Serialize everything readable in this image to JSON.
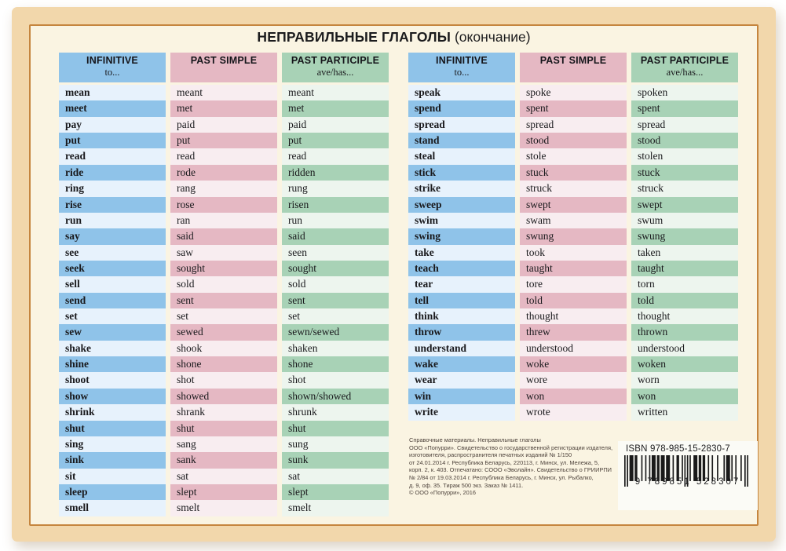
{
  "title": {
    "main": "НЕПРАВИЛЬНЫЕ ГЛАГОЛЫ",
    "suffix": "(окончание)"
  },
  "columns": {
    "infinitive": {
      "label": "INFINITIVE",
      "sub": "to..."
    },
    "past_simple": {
      "label": "PAST SIMPLE",
      "sub": ""
    },
    "past_participle": {
      "label": "PAST PARTICIPLE",
      "sub": "ave/has..."
    }
  },
  "left_table": {
    "rows": [
      [
        "mean",
        "meant",
        "meant"
      ],
      [
        "meet",
        "met",
        "met"
      ],
      [
        "pay",
        "paid",
        "paid"
      ],
      [
        "put",
        "put",
        "put"
      ],
      [
        "read",
        "read",
        "read"
      ],
      [
        "ride",
        "rode",
        "ridden"
      ],
      [
        "ring",
        "rang",
        "rung"
      ],
      [
        "rise",
        "rose",
        "risen"
      ],
      [
        "run",
        "ran",
        "run"
      ],
      [
        "say",
        "said",
        "said"
      ],
      [
        "see",
        "saw",
        "seen"
      ],
      [
        "seek",
        "sought",
        "sought"
      ],
      [
        "sell",
        "sold",
        "sold"
      ],
      [
        "send",
        "sent",
        "sent"
      ],
      [
        "set",
        "set",
        "set"
      ],
      [
        "sew",
        "sewed",
        "sewn/sewed"
      ],
      [
        "shake",
        "shook",
        "shaken"
      ],
      [
        "shine",
        "shone",
        "shone"
      ],
      [
        "shoot",
        "shot",
        "shot"
      ],
      [
        "show",
        "showed",
        "shown/showed"
      ],
      [
        "shrink",
        "shrank",
        "shrunk"
      ],
      [
        "shut",
        "shut",
        "shut"
      ],
      [
        "sing",
        "sang",
        "sung"
      ],
      [
        "sink",
        "sank",
        "sunk"
      ],
      [
        "sit",
        "sat",
        "sat"
      ],
      [
        "sleep",
        "slept",
        "slept"
      ],
      [
        "smell",
        "smelt",
        "smelt"
      ]
    ]
  },
  "right_table": {
    "rows": [
      [
        "speak",
        "spoke",
        "spoken"
      ],
      [
        "spend",
        "spent",
        "spent"
      ],
      [
        "spread",
        "spread",
        "spread"
      ],
      [
        "stand",
        "stood",
        "stood"
      ],
      [
        "steal",
        "stole",
        "stolen"
      ],
      [
        "stick",
        "stuck",
        "stuck"
      ],
      [
        "strike",
        "struck",
        "struck"
      ],
      [
        "sweep",
        "swept",
        "swept"
      ],
      [
        "swim",
        "swam",
        "swum"
      ],
      [
        "swing",
        "swung",
        "swung"
      ],
      [
        "take",
        "took",
        "taken"
      ],
      [
        "teach",
        "taught",
        "taught"
      ],
      [
        "tear",
        "tore",
        "torn"
      ],
      [
        "tell",
        "told",
        "told"
      ],
      [
        "think",
        "thought",
        "thought"
      ],
      [
        "throw",
        "threw",
        "thrown"
      ],
      [
        "understand",
        "understood",
        "understood"
      ],
      [
        "wake",
        "woke",
        "woken"
      ],
      [
        "wear",
        "wore",
        "worn"
      ],
      [
        "win",
        "won",
        "won"
      ],
      [
        "write",
        "wrote",
        "written"
      ]
    ]
  },
  "publisher": {
    "lines": [
      "Справочные материалы. Неправильные глаголы",
      "ООО «Попурри». Свидетельство о государственной регистрации издателя,",
      "изготовителя, распространителя печатных изданий № 1/150",
      "от 24.01.2014 г. Республика Беларусь, 220113, г. Минск, ул. Мележа, 5,",
      "корп. 2, к. 403. Отпечатано: СООО «Эволайн». Свидетельство о ГРИИРПИ",
      "№ 2/84 от 19.03.2014 г. Республика Беларусь, г. Минск, ул. Рыбалко,",
      "д. 9, оф. 35. Тираж 500 экз. Заказ № 1411.",
      "© ООО «Попурри», 2016"
    ]
  },
  "barcode": {
    "isbn_label": "ISBN 978-985-15-2830-7",
    "digits": "9 789851 528307"
  },
  "colors": {
    "blue_strong": "#8fc3e9",
    "blue_pale": "#e7f2fc",
    "pink_strong": "#e5b8c3",
    "pink_pale": "#f8edf0",
    "green_strong": "#a8d2b6",
    "green_pale": "#edf5ee",
    "card_border": "#f2d7ab",
    "card_line": "#c5853e",
    "card_bg": "#faf4e2"
  }
}
